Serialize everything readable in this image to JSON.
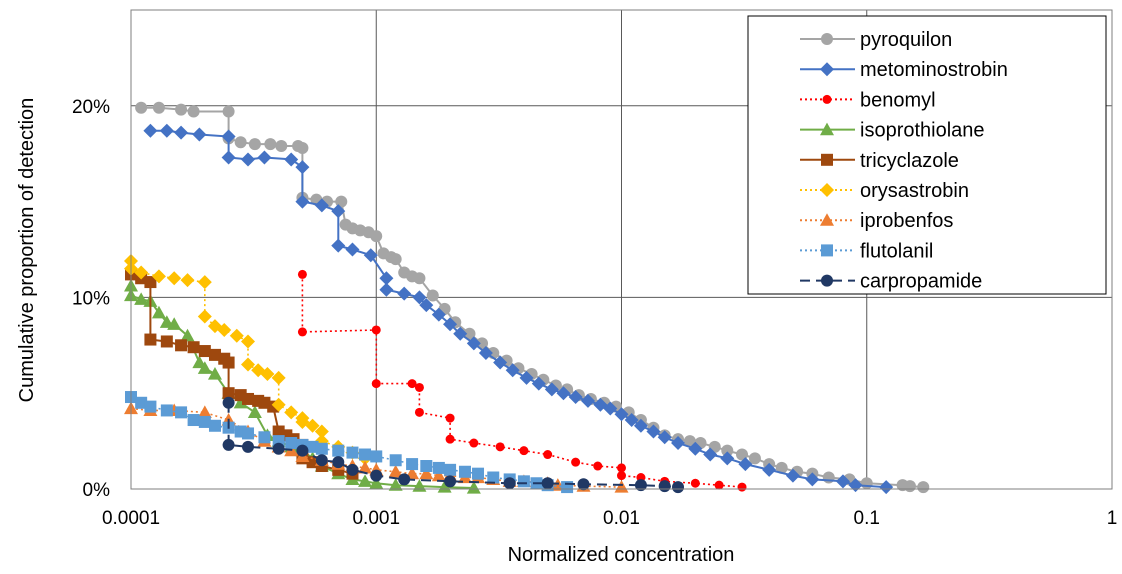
{
  "chart_data": {
    "type": "scatter",
    "title": "",
    "xlabel": "Normalized concentration",
    "ylabel": "Cumulative proportion of detection",
    "x_scale": "log",
    "xlim": [
      0.0001,
      1
    ],
    "ylim": [
      0,
      0.25
    ],
    "x_ticks": [
      0.0001,
      0.001,
      0.01,
      0.1,
      1
    ],
    "x_tick_labels": [
      "0.0001",
      "0.001",
      "0.01",
      "0.1",
      "1"
    ],
    "y_ticks": [
      0,
      0.1,
      0.2
    ],
    "y_tick_labels": [
      "0%",
      "10%",
      "20%"
    ],
    "grid": true,
    "legend_position": "top-right",
    "series": [
      {
        "name": "pyroquilon",
        "color": "#A5A5A5",
        "line": "solid",
        "marker": "circle",
        "x": [
          0.00011,
          0.00013,
          0.00016,
          0.00018,
          0.00025,
          0.00025,
          0.00028,
          0.00032,
          0.00037,
          0.00041,
          0.00048,
          0.0005,
          0.0005,
          0.00057,
          0.00063,
          0.00072,
          0.00075,
          0.0008,
          0.00086,
          0.00093,
          0.001,
          0.00107,
          0.00115,
          0.0012,
          0.0013,
          0.0014,
          0.0015,
          0.0017,
          0.0019,
          0.0021,
          0.0024,
          0.0027,
          0.003,
          0.0034,
          0.0038,
          0.0043,
          0.0048,
          0.0054,
          0.006,
          0.0067,
          0.0075,
          0.0085,
          0.0095,
          0.0107,
          0.012,
          0.0135,
          0.015,
          0.017,
          0.019,
          0.021,
          0.024,
          0.027,
          0.031,
          0.035,
          0.04,
          0.045,
          0.052,
          0.06,
          0.07,
          0.085,
          0.1,
          0.14,
          0.15,
          0.17
        ],
        "y": [
          0.199,
          0.199,
          0.198,
          0.197,
          0.197,
          0.183,
          0.181,
          0.18,
          0.18,
          0.179,
          0.179,
          0.178,
          0.152,
          0.151,
          0.15,
          0.15,
          0.138,
          0.136,
          0.135,
          0.134,
          0.132,
          0.123,
          0.121,
          0.12,
          0.113,
          0.111,
          0.11,
          0.101,
          0.094,
          0.087,
          0.081,
          0.076,
          0.071,
          0.067,
          0.063,
          0.06,
          0.057,
          0.054,
          0.052,
          0.049,
          0.047,
          0.045,
          0.043,
          0.04,
          0.036,
          0.032,
          0.028,
          0.026,
          0.025,
          0.024,
          0.022,
          0.02,
          0.018,
          0.016,
          0.013,
          0.011,
          0.009,
          0.008,
          0.006,
          0.005,
          0.003,
          0.002,
          0.0015,
          0.001
        ]
      },
      {
        "name": "metominostrobin",
        "color": "#4472C4",
        "line": "solid",
        "marker": "diamond",
        "x": [
          0.00012,
          0.00014,
          0.00016,
          0.00019,
          0.00025,
          0.00025,
          0.0003,
          0.00035,
          0.00045,
          0.0005,
          0.0005,
          0.0006,
          0.0007,
          0.0007,
          0.0008,
          0.00095,
          0.0011,
          0.0011,
          0.0013,
          0.0015,
          0.0016,
          0.0018,
          0.002,
          0.0022,
          0.0025,
          0.0028,
          0.0032,
          0.0036,
          0.0041,
          0.0046,
          0.0052,
          0.0058,
          0.0065,
          0.0073,
          0.0082,
          0.009,
          0.01,
          0.011,
          0.012,
          0.0135,
          0.015,
          0.017,
          0.02,
          0.023,
          0.027,
          0.032,
          0.04,
          0.05,
          0.06,
          0.08,
          0.09,
          0.12
        ],
        "y": [
          0.187,
          0.187,
          0.186,
          0.185,
          0.184,
          0.173,
          0.172,
          0.173,
          0.172,
          0.168,
          0.15,
          0.148,
          0.145,
          0.127,
          0.125,
          0.122,
          0.11,
          0.104,
          0.102,
          0.1,
          0.096,
          0.091,
          0.086,
          0.081,
          0.076,
          0.071,
          0.066,
          0.062,
          0.058,
          0.055,
          0.052,
          0.05,
          0.048,
          0.046,
          0.044,
          0.042,
          0.039,
          0.036,
          0.033,
          0.03,
          0.027,
          0.024,
          0.021,
          0.018,
          0.016,
          0.013,
          0.01,
          0.007,
          0.005,
          0.004,
          0.002,
          0.001
        ]
      },
      {
        "name": "benomyl",
        "color": "#FF0000",
        "line": "dotted",
        "marker": "circle-small",
        "x": [
          0.0005,
          0.0005,
          0.001,
          0.001,
          0.0014,
          0.0015,
          0.0015,
          0.002,
          0.002,
          0.0025,
          0.0032,
          0.004,
          0.005,
          0.0065,
          0.008,
          0.01,
          0.01,
          0.012,
          0.015,
          0.02,
          0.025,
          0.031
        ],
        "y": [
          0.112,
          0.082,
          0.083,
          0.055,
          0.055,
          0.053,
          0.04,
          0.037,
          0.026,
          0.024,
          0.022,
          0.02,
          0.018,
          0.014,
          0.012,
          0.011,
          0.007,
          0.006,
          0.004,
          0.003,
          0.002,
          0.001
        ]
      },
      {
        "name": "isoprothiolane",
        "color": "#70AD47",
        "line": "solid",
        "marker": "triangle",
        "x": [
          0.0001,
          0.0001,
          0.00011,
          0.00012,
          0.00013,
          0.00014,
          0.00015,
          0.00017,
          0.00019,
          0.0002,
          0.00022,
          0.00025,
          0.00028,
          0.00032,
          0.00036,
          0.0004,
          0.00045,
          0.0005,
          0.00055,
          0.0006,
          0.0007,
          0.0008,
          0.0009,
          0.001,
          0.0012,
          0.0015,
          0.0019,
          0.0025
        ],
        "y": [
          0.106,
          0.101,
          0.099,
          0.098,
          0.092,
          0.087,
          0.086,
          0.08,
          0.066,
          0.063,
          0.06,
          0.05,
          0.045,
          0.04,
          0.028,
          0.025,
          0.022,
          0.02,
          0.016,
          0.012,
          0.008,
          0.005,
          0.004,
          0.003,
          0.002,
          0.0015,
          0.001,
          0.0005
        ]
      },
      {
        "name": "tricyclazole",
        "color": "#9E480E",
        "line": "solid",
        "marker": "square",
        "x": [
          0.0001,
          0.00011,
          0.00012,
          0.00012,
          0.00014,
          0.00016,
          0.00018,
          0.0002,
          0.00022,
          0.00024,
          0.00025,
          0.00025,
          0.00028,
          0.0003,
          0.00033,
          0.00035,
          0.00038,
          0.0004,
          0.00043,
          0.00046,
          0.0005,
          0.0005,
          0.00055,
          0.0006,
          0.0007,
          0.0008
        ],
        "y": [
          0.112,
          0.11,
          0.108,
          0.078,
          0.077,
          0.075,
          0.074,
          0.072,
          0.07,
          0.068,
          0.066,
          0.05,
          0.049,
          0.047,
          0.046,
          0.045,
          0.043,
          0.03,
          0.028,
          0.026,
          0.023,
          0.016,
          0.014,
          0.012,
          0.01,
          0.008
        ]
      },
      {
        "name": "orysastrobin",
        "color": "#FFC000",
        "line": "dotted",
        "marker": "diamond",
        "x": [
          0.0001,
          0.0001,
          0.00011,
          0.00013,
          0.00015,
          0.00017,
          0.0002,
          0.0002,
          0.00022,
          0.00024,
          0.00027,
          0.0003,
          0.0003,
          0.00033,
          0.00036,
          0.0004,
          0.0004,
          0.00045,
          0.0005,
          0.0005,
          0.00055,
          0.0006,
          0.0006,
          0.0007,
          0.0008,
          0.0009
        ],
        "y": [
          0.119,
          0.115,
          0.113,
          0.111,
          0.11,
          0.109,
          0.108,
          0.09,
          0.085,
          0.083,
          0.08,
          0.077,
          0.065,
          0.062,
          0.06,
          0.058,
          0.044,
          0.04,
          0.037,
          0.035,
          0.033,
          0.03,
          0.025,
          0.022,
          0.019,
          0.016
        ]
      },
      {
        "name": "iprobenfos",
        "color": "#ED7D31",
        "line": "dotted",
        "marker": "triangle",
        "x": [
          0.0001,
          0.00012,
          0.00015,
          0.0002,
          0.00025,
          0.0003,
          0.00035,
          0.0004,
          0.00045,
          0.0005,
          0.0006,
          0.0007,
          0.0008,
          0.0009,
          0.001,
          0.0012,
          0.0014,
          0.0016,
          0.0018,
          0.002,
          0.0023,
          0.0026,
          0.003,
          0.0035,
          0.004,
          0.005,
          0.0055,
          0.007,
          0.01
        ],
        "y": [
          0.042,
          0.041,
          0.041,
          0.04,
          0.036,
          0.03,
          0.025,
          0.022,
          0.02,
          0.017,
          0.015,
          0.013,
          0.012,
          0.011,
          0.01,
          0.009,
          0.008,
          0.008,
          0.007,
          0.007,
          0.006,
          0.006,
          0.005,
          0.004,
          0.004,
          0.003,
          0.002,
          0.0015,
          0.001
        ]
      },
      {
        "name": "flutolanil",
        "color": "#5B9BD5",
        "line": "dotted",
        "marker": "square",
        "x": [
          0.0001,
          0.00011,
          0.00012,
          0.00014,
          0.00016,
          0.00018,
          0.0002,
          0.00022,
          0.00025,
          0.00028,
          0.0003,
          0.00035,
          0.0004,
          0.00045,
          0.0005,
          0.00055,
          0.0006,
          0.0007,
          0.0008,
          0.0009,
          0.001,
          0.0012,
          0.0014,
          0.0016,
          0.0018,
          0.002,
          0.0023,
          0.0026,
          0.003,
          0.0035,
          0.004,
          0.0045,
          0.005,
          0.006
        ],
        "y": [
          0.048,
          0.045,
          0.043,
          0.041,
          0.04,
          0.036,
          0.035,
          0.033,
          0.032,
          0.03,
          0.029,
          0.027,
          0.025,
          0.024,
          0.023,
          0.022,
          0.021,
          0.02,
          0.019,
          0.018,
          0.017,
          0.015,
          0.013,
          0.012,
          0.011,
          0.01,
          0.009,
          0.008,
          0.006,
          0.005,
          0.004,
          0.003,
          0.002,
          0.001
        ]
      },
      {
        "name": "carpropamide",
        "color": "#203864",
        "line": "dashed",
        "marker": "circle",
        "x": [
          0.00025,
          0.00025,
          0.0003,
          0.0004,
          0.0005,
          0.0006,
          0.0007,
          0.0008,
          0.001,
          0.0013,
          0.002,
          0.0035,
          0.005,
          0.007,
          0.012,
          0.015,
          0.017
        ],
        "y": [
          0.045,
          0.023,
          0.022,
          0.021,
          0.02,
          0.015,
          0.014,
          0.01,
          0.007,
          0.005,
          0.004,
          0.003,
          0.003,
          0.0025,
          0.002,
          0.0015,
          0.001
        ]
      }
    ]
  }
}
